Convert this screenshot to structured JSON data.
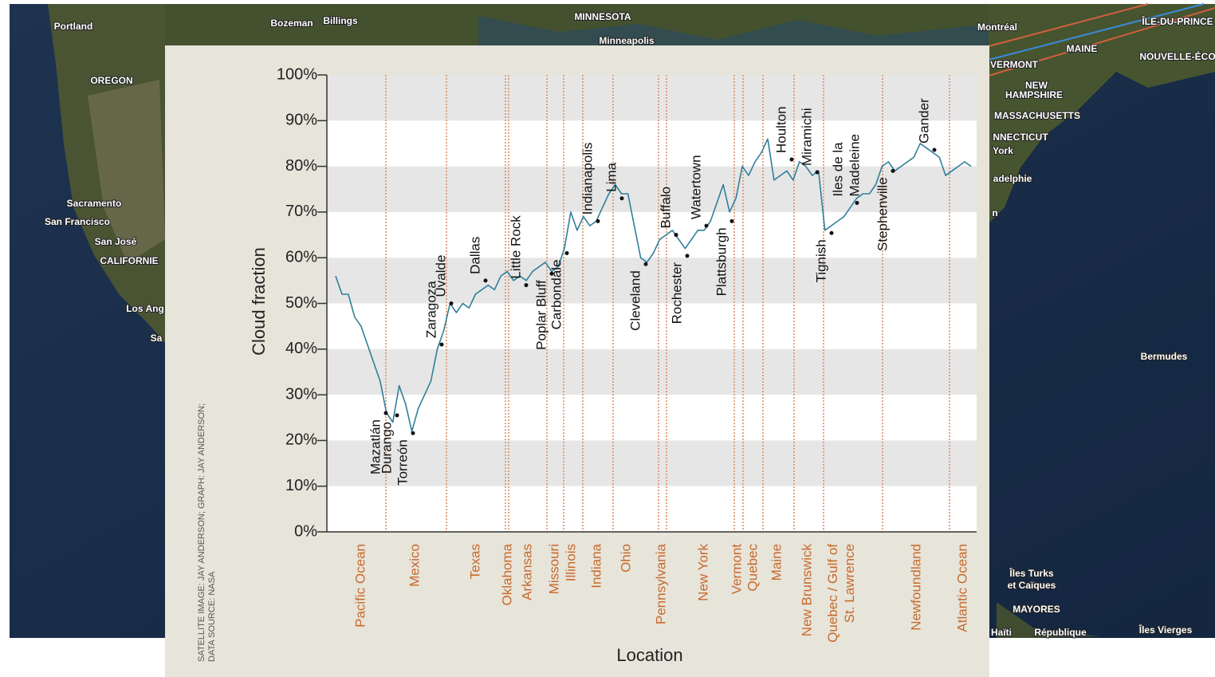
{
  "map": {
    "labels": [
      "Portland",
      "Bozeman",
      "Billings",
      "MINNESOTA",
      "Minneapolis",
      "OREGON",
      "Sacramento",
      "San Francisco",
      "San José",
      "CALIFORNIE",
      "Los Ang",
      "Sa",
      "Montréal",
      "ÎLE-DU-PRINCE",
      "MAINE",
      "NOUVELLE-ÉCO",
      "VERMONT",
      "NEW",
      "HAMPSHIRE",
      "MASSACHUSETTS",
      "NNECTICUT",
      "York",
      "adelphie",
      "n",
      "Bermudes",
      "Îles Turks",
      "et Caïques",
      "MAYORES",
      "Haïti",
      "République",
      "Îles Vierges"
    ]
  },
  "chart_data": {
    "type": "line",
    "y_label": "Cloud fraction",
    "x_label": "Location",
    "color": "#2f7f9c",
    "values": [
      56,
      52,
      52,
      47,
      45,
      41,
      37,
      33,
      26,
      24,
      32,
      28,
      22,
      27,
      30,
      33,
      40,
      44,
      50,
      48,
      50,
      49,
      52,
      53,
      54,
      53,
      56,
      57,
      55,
      56,
      55,
      57,
      58,
      59,
      57,
      58,
      62,
      70,
      66,
      69,
      67,
      68,
      71,
      74,
      76,
      74,
      74,
      67,
      60,
      59,
      61,
      64,
      65,
      66,
      64,
      62,
      64,
      66,
      66,
      68,
      72,
      76,
      70,
      73,
      80,
      78,
      81,
      83,
      86,
      77,
      78,
      79,
      77,
      81,
      80,
      78,
      79,
      66,
      67,
      68,
      69,
      71,
      73,
      74,
      74,
      76,
      80,
      81,
      79,
      80,
      81,
      82,
      85,
      84,
      83,
      82,
      78,
      79,
      80,
      81,
      80
    ],
    "ylim": [
      0,
      100
    ],
    "yticks": [
      {
        "value": 0,
        "label": "0%"
      },
      {
        "value": 10,
        "label": "10%"
      },
      {
        "value": 20,
        "label": "20%"
      },
      {
        "value": 30,
        "label": "30%"
      },
      {
        "value": 40,
        "label": "40%"
      },
      {
        "value": 50,
        "label": "50%"
      },
      {
        "value": 60,
        "label": "60%"
      },
      {
        "value": 70,
        "label": "70%"
      },
      {
        "value": 80,
        "label": "80%"
      },
      {
        "value": 90,
        "label": "90%"
      },
      {
        "value": 100,
        "label": "100%"
      }
    ],
    "bands": true,
    "regions": [
      [
        "Pacific Ocean"
      ],
      [
        "Mexico"
      ],
      [
        "Texas"
      ],
      [
        "Oklahoma"
      ],
      [
        "Arkansas"
      ],
      [
        "Missouri"
      ],
      [
        "Illinois"
      ],
      [
        "Indiana"
      ],
      [
        "Ohio"
      ],
      [
        "Pennsylvania"
      ],
      [
        "New York"
      ],
      [
        "Vermont"
      ],
      [
        "Quebec"
      ],
      [
        "Maine"
      ],
      [
        "New Brunswick"
      ],
      [
        "Quebec / Gulf of",
        "St. Lawrence"
      ],
      [
        "Newfoundland"
      ],
      [
        "Atlantic Ocean"
      ]
    ],
    "cities": [
      {
        "label": [
          "Mazatlán"
        ],
        "value": 26
      },
      {
        "label": [
          "Durango"
        ],
        "value": 25.5
      },
      {
        "label": [
          "Torreón"
        ],
        "value": 21.6
      },
      {
        "label": [
          "Zaragoza"
        ],
        "value": 41
      },
      {
        "label": [
          "Uvalde"
        ],
        "value": 50
      },
      {
        "label": [
          "Dallas"
        ],
        "value": 55
      },
      {
        "label": [
          "Little Rock"
        ],
        "value": 54
      },
      {
        "label": [
          "Poplar Bluff"
        ],
        "value": 56.5
      },
      {
        "label": [
          "Carbondale"
        ],
        "value": 61
      },
      {
        "label": [
          "Indianapolis"
        ],
        "value": 68
      },
      {
        "label": [
          "Lima"
        ],
        "value": 73
      },
      {
        "label": [
          "Cleveland"
        ],
        "value": 58.6
      },
      {
        "label": [
          "Buffalo"
        ],
        "value": 65
      },
      {
        "label": [
          "Rochester"
        ],
        "value": 60.4
      },
      {
        "label": [
          "Watertown"
        ],
        "value": 67
      },
      {
        "label": [
          "Plattsburgh"
        ],
        "value": 68
      },
      {
        "label": [
          "Houlton"
        ],
        "value": 81.5
      },
      {
        "label": [
          "Miramichi"
        ],
        "value": 78.7
      },
      {
        "label": [
          "Tignish"
        ],
        "value": 65.4
      },
      {
        "label": [
          "Iles de la",
          "Madeleine"
        ],
        "value": 72
      },
      {
        "label": [
          "Stephenville"
        ],
        "value": 79
      },
      {
        "label": [
          "Gander"
        ],
        "value": 83.6
      }
    ],
    "credit": [
      "SATELLITE IMAGE: JAY ANDERSON; GRAPH: JAY ANDERSON;",
      "DATA SOURCE: NASA"
    ]
  }
}
